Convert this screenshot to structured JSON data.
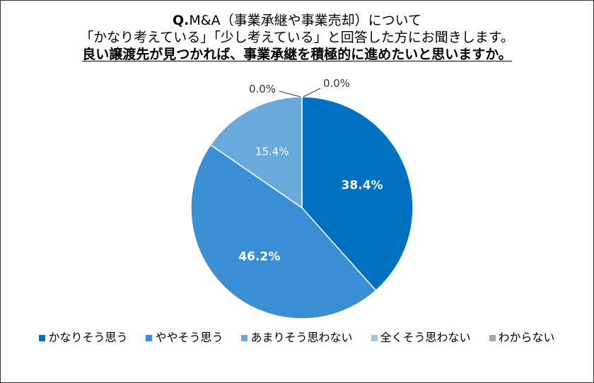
{
  "title": {
    "q_prefix": "Q.",
    "line1": "M&A（事業承継や事業売却）について",
    "line2": "「かなり考えている」「少し考えている」と回答した方にお聞きします。",
    "line3": "良い譲渡先が見つかれば、事業承継を積極的に進めたいと思いますか。"
  },
  "chart_data": {
    "type": "pie",
    "start": "top",
    "direction": "clockwise",
    "categories": [
      "かなりそう思う",
      "ややそう思う",
      "あまりそう思わない",
      "全くそう思わない",
      "わからない"
    ],
    "values": [
      38.4,
      46.2,
      15.4,
      0.0,
      0.0
    ],
    "labels": [
      "38.4%",
      "46.2%",
      "15.4%",
      "0.0%",
      "0.0%"
    ],
    "colors": [
      "#0070C0",
      "#3A8ED4",
      "#6AA9DC",
      "#9DC8EC",
      "#A6A6A6"
    ],
    "legend_placement": "bottom"
  }
}
